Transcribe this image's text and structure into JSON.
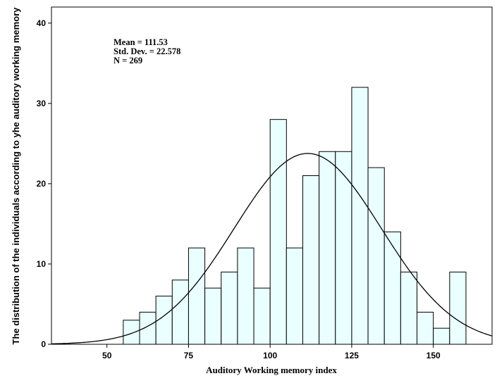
{
  "chart_data": {
    "type": "bar",
    "title": "",
    "xlabel": "Auditory Working memory index",
    "ylabel": "The distribution of the individuals according to yhe auditory working memory",
    "xlim": [
      33,
      168
    ],
    "ylim": [
      0,
      42
    ],
    "xticks": [
      50,
      75,
      100,
      125,
      150
    ],
    "yticks": [
      0,
      10,
      20,
      30,
      40
    ],
    "bin_width": 5,
    "bins": [
      {
        "start": 55,
        "count": 3
      },
      {
        "start": 60,
        "count": 4
      },
      {
        "start": 65,
        "count": 6
      },
      {
        "start": 70,
        "count": 8
      },
      {
        "start": 75,
        "count": 12
      },
      {
        "start": 80,
        "count": 7
      },
      {
        "start": 85,
        "count": 9
      },
      {
        "start": 90,
        "count": 12
      },
      {
        "start": 95,
        "count": 7
      },
      {
        "start": 100,
        "count": 28
      },
      {
        "start": 105,
        "count": 12
      },
      {
        "start": 110,
        "count": 21
      },
      {
        "start": 115,
        "count": 24
      },
      {
        "start": 120,
        "count": 24
      },
      {
        "start": 125,
        "count": 32
      },
      {
        "start": 130,
        "count": 22
      },
      {
        "start": 135,
        "count": 14
      },
      {
        "start": 140,
        "count": 9
      },
      {
        "start": 145,
        "count": 4
      },
      {
        "start": 150,
        "count": 2
      },
      {
        "start": 155,
        "count": 9
      }
    ],
    "normal_curve": {
      "mean": 111.53,
      "sd": 22.578,
      "n": 269
    },
    "stats_text": [
      "Mean = 111.53",
      "Std. Dev. = 22.578",
      "N = 269"
    ],
    "colors": {
      "bar_fill": "#eaffff",
      "bar_stroke": "#000000",
      "curve": "#000000"
    },
    "grid": false,
    "legend": "none"
  }
}
